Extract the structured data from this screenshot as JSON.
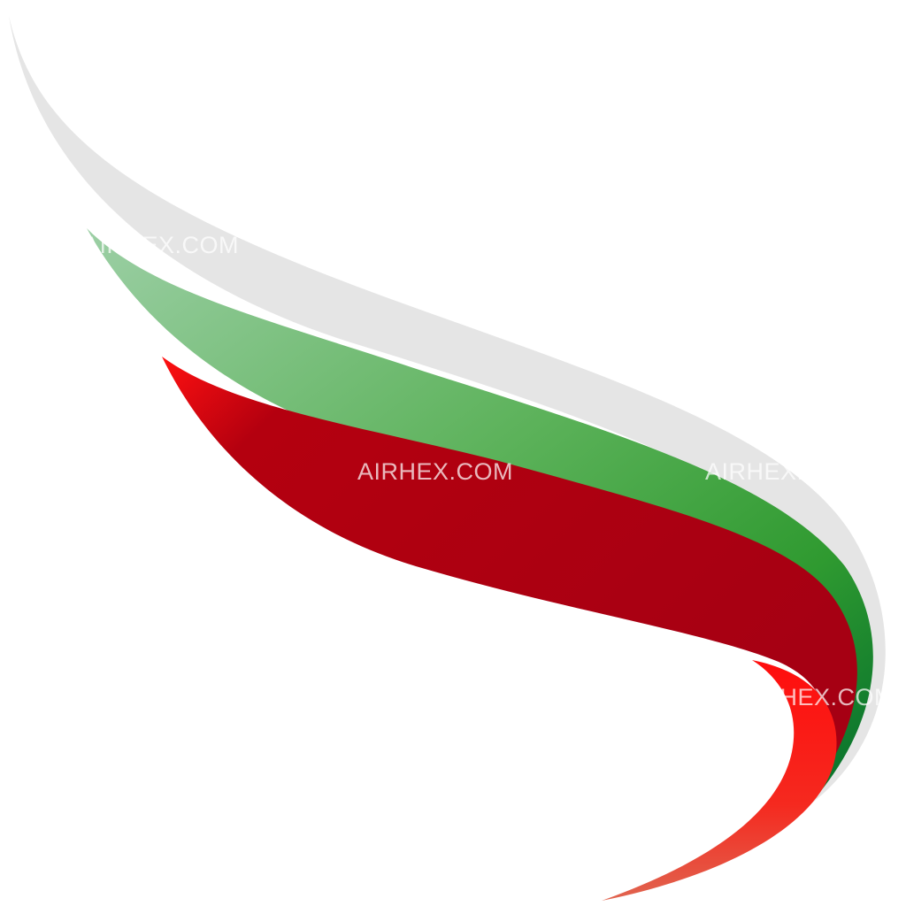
{
  "logo": {
    "name": "airline-tail-logo",
    "colors": {
      "background": "#ffffff",
      "stripe_gray": "#e5e5e5",
      "stripe_green_light": "#8cc49a",
      "stripe_green_mid": "#3d9e35",
      "stripe_green_dark": "#006f2e",
      "stripe_red_bright": "#ff0f0f",
      "stripe_red_dark": "#a90014",
      "stripe_red_tip": "#e45a4e"
    }
  },
  "watermarks": [
    {
      "text": "AIRHEX.COM"
    },
    {
      "text": "AIRHEX.COM"
    },
    {
      "text": "AIRHEX.COM"
    },
    {
      "text": "AIRHEX.COM"
    }
  ]
}
